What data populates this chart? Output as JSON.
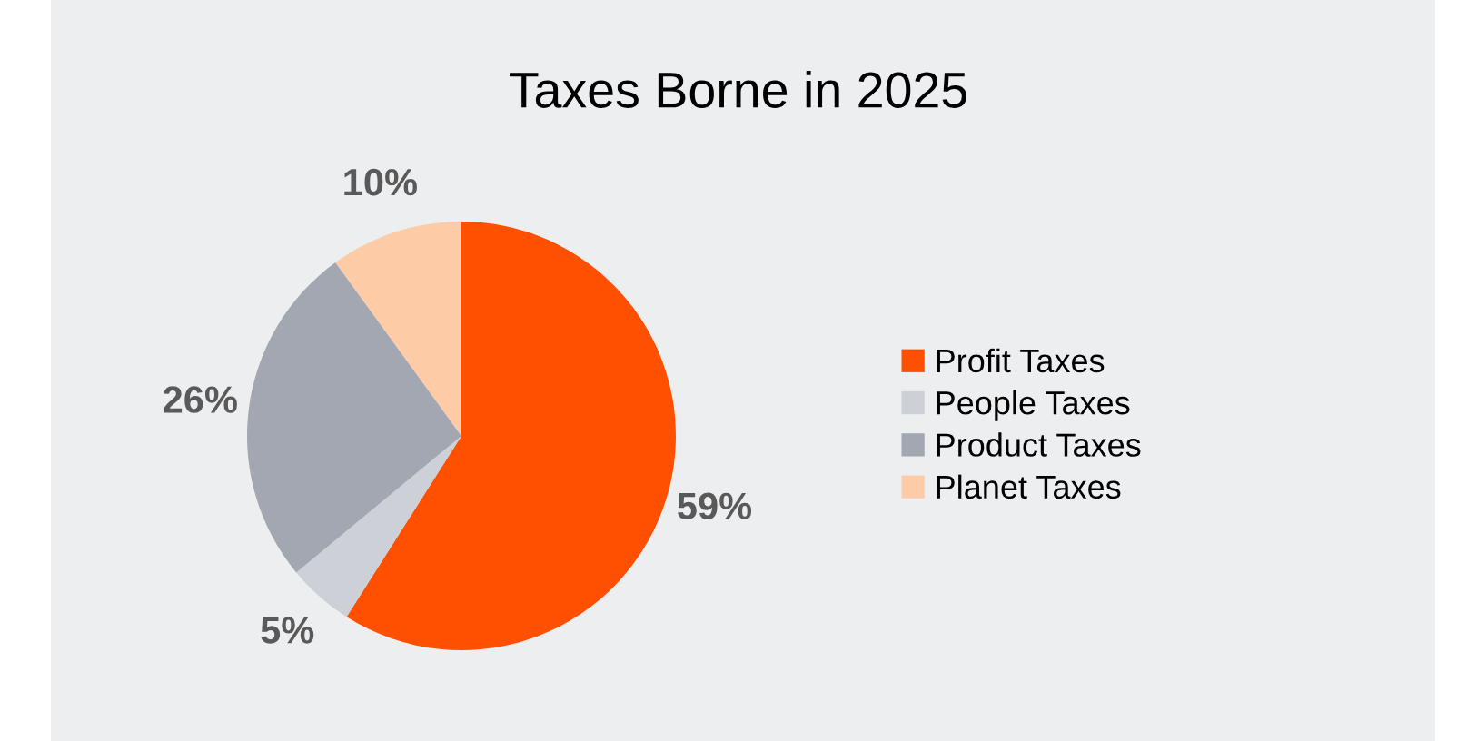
{
  "chart_data": {
    "type": "pie",
    "title": "Taxes Borne in 2025",
    "categories": [
      "Profit Taxes",
      "People Taxes",
      "Product Taxes",
      "Planet Taxes"
    ],
    "values": [
      59,
      5,
      26,
      10
    ],
    "colors": [
      "#fe5000",
      "#cdd0d6",
      "#a2a7b2",
      "#fecba7"
    ],
    "value_labels": [
      "59%",
      "5%",
      "26%",
      "10%"
    ],
    "legend": "right"
  }
}
